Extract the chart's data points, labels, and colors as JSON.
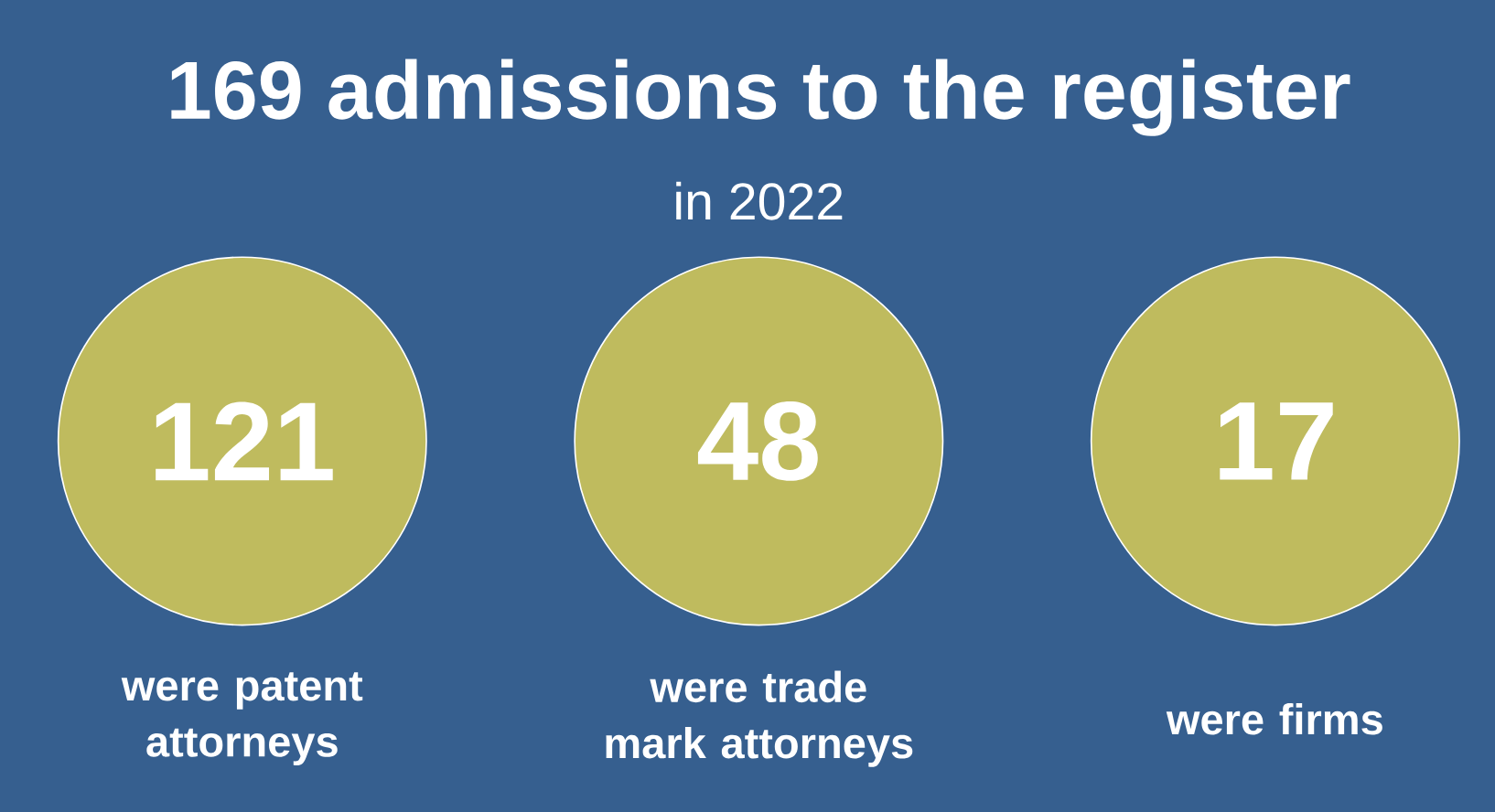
{
  "chart_data": {
    "type": "other",
    "title": "169 admissions to the register",
    "subtitle": "in 2022",
    "categories": [
      "were patent attorneys",
      "were trade mark attorneys",
      "were firms"
    ],
    "values": [
      121,
      48,
      17
    ],
    "color": "#bfbb5e",
    "data_labels": true
  }
}
